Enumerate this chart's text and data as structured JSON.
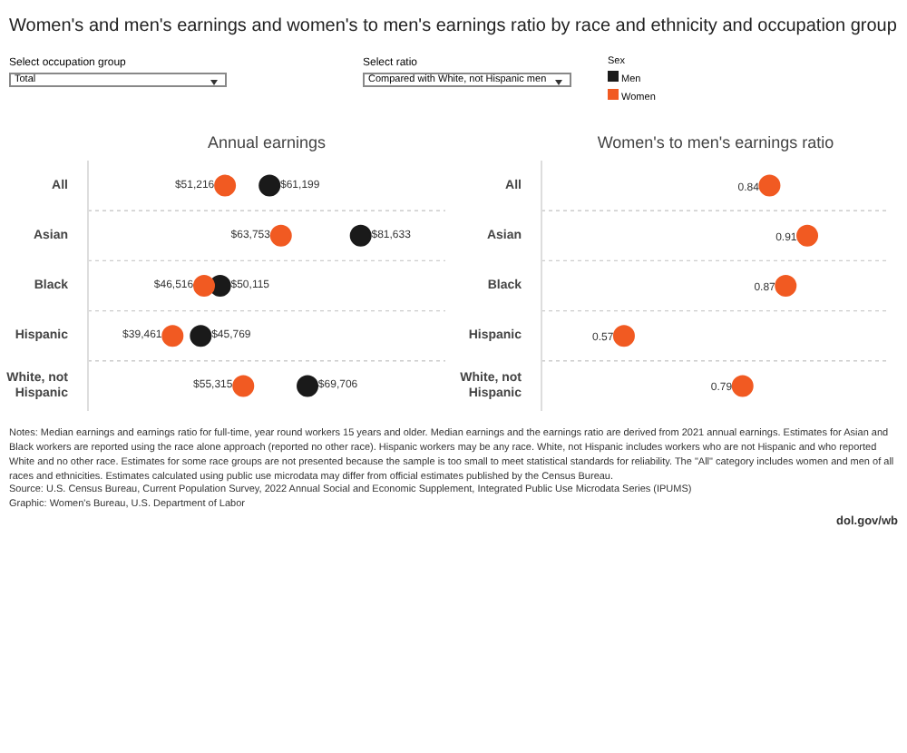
{
  "chart_data": [
    {
      "type": "scatter",
      "orientation": "horizontal",
      "title": "Women's and men's earnings and women's to men's earnings ratio by race and ethnicity and occupation group",
      "subtitle": "Annual earnings",
      "categories": [
        "All",
        "Asian",
        "Black",
        "Hispanic",
        "White, not Hispanic"
      ],
      "legend": "top right",
      "legend_title": "Sex",
      "marker": "circle",
      "series": [
        {
          "name": "Men",
          "color": "#1a1a1a",
          "values": [
            61199,
            81633,
            50115,
            45769,
            69706
          ],
          "value_labels": [
            "$61,199",
            "$81,633",
            "$50,115",
            "$45,769",
            "$69,706"
          ]
        },
        {
          "name": "Women",
          "color": "#f15a22",
          "values": [
            51216,
            63753,
            46516,
            39461,
            55315
          ],
          "value_labels": [
            "$51,216",
            "$63,753",
            "$46,516",
            "$39,461",
            "$55,315"
          ]
        }
      ],
      "annotations": [
        "Select occupation group",
        "Total",
        "Notes: Median earnings and earnings ratio for full-time, year round workers 15 years and older. Median earnings and the earnings ratio are derived from 2021 annual earnings. Estimates for Asian and Black workers are reported using the race alone approach (reported no other race). Hispanic workers may be any race. White, not Hispanic includes workers who are not Hispanic and who reported White and no other race. Estimates for some race groups are not presented because the sample is too small to meet statistical standards for reliability. The \"All\" category includes women and men of all races and ethnicities. Estimates calculated using public use microdata may differ from official estimates published by the Census Bureau.",
        "Source: U.S. Census Bureau, Current Population Survey, 2022 Annual Social and Economic Supplement, Integrated Public Use Microdata Series (IPUMS)",
        "Graphic: Women's Bureau, U.S. Department of Labor",
        "dol.gov/wb"
      ]
    },
    {
      "type": "scatter",
      "orientation": "horizontal",
      "title": "Women's to men's earnings ratio",
      "categories": [
        "All",
        "Asian",
        "Black",
        "Hispanic",
        "White, not Hispanic"
      ],
      "marker": "circle",
      "data_labels": true,
      "series": [
        {
          "color": "#f15a22",
          "values": [
            0.84,
            0.91,
            0.87,
            0.57,
            0.79
          ]
        }
      ],
      "annotations": [
        "Select ratio",
        "Compared with White, not Hispanic men"
      ]
    }
  ]
}
